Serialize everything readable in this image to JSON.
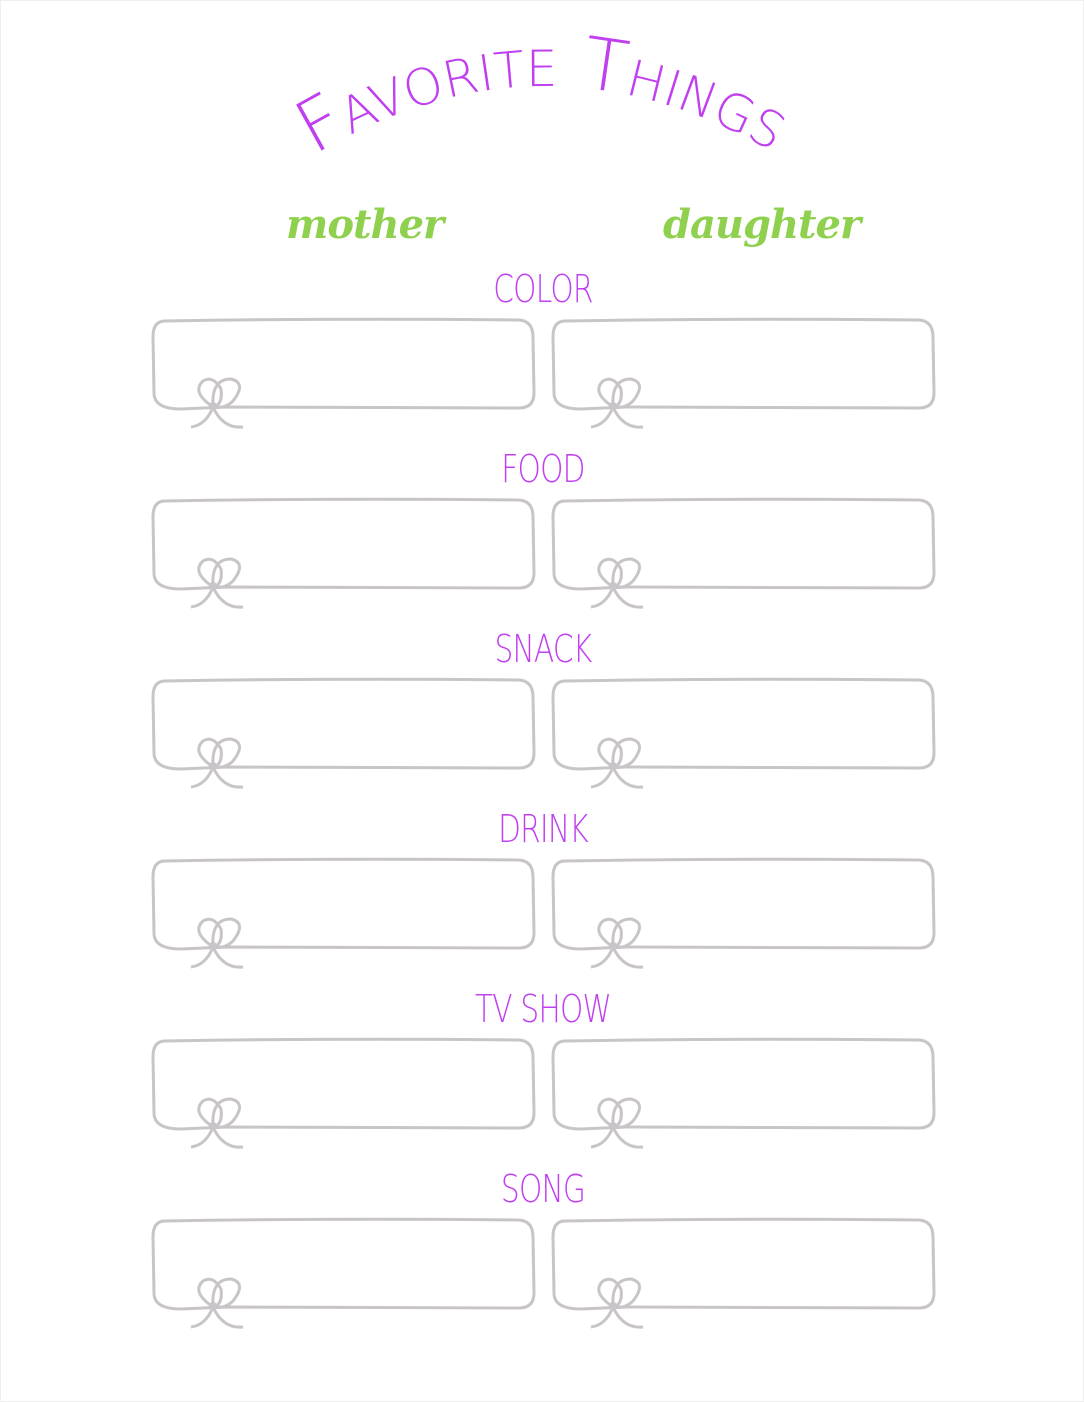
{
  "title": "Favorite Things",
  "columns": {
    "left": "mother",
    "right": "daughter"
  },
  "categories": [
    "COLOR",
    "FOOD",
    "SNACK",
    "DRINK",
    "TV SHOW",
    "SONG"
  ],
  "colors": {
    "title": "#c040f0",
    "columns": "#8fd14f",
    "boxes": "#c8c4c8"
  },
  "icons": {
    "box_decoration": "bow-icon"
  }
}
